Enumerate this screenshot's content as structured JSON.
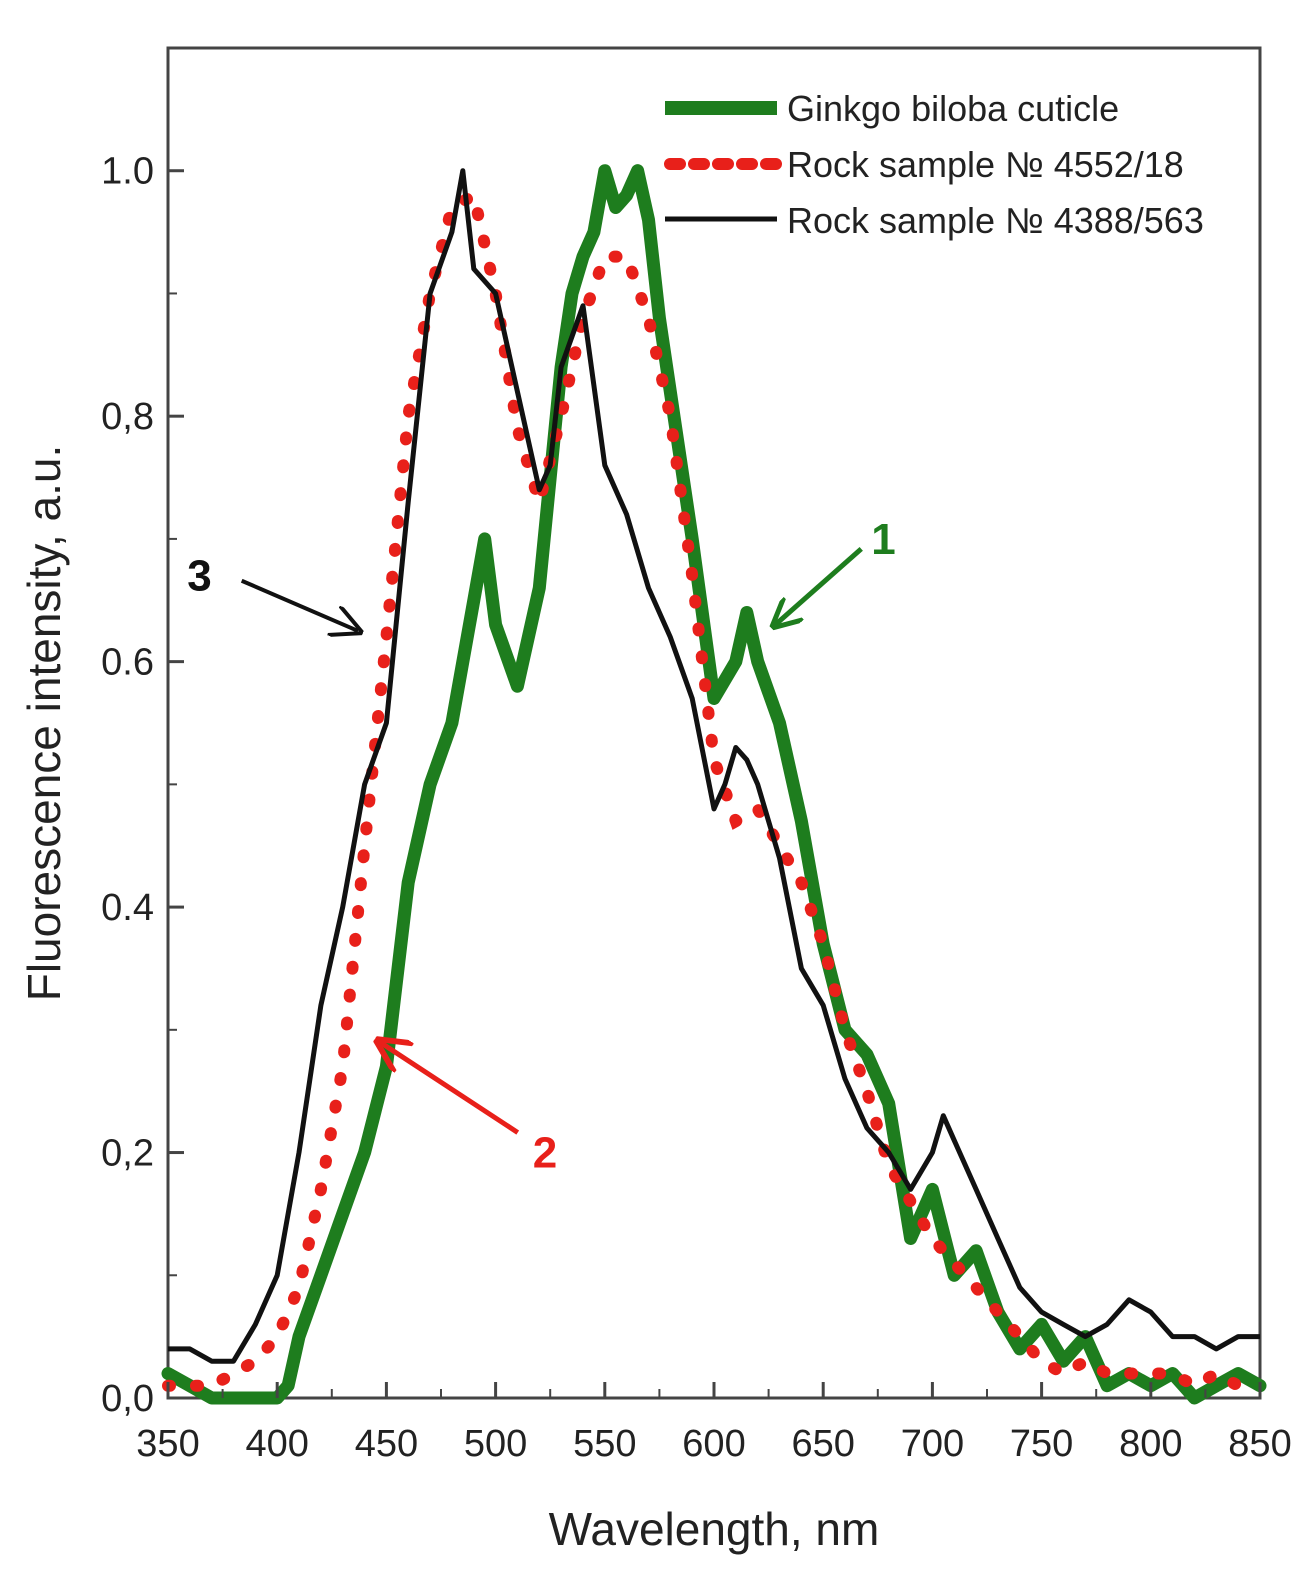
{
  "chart_data": {
    "type": "line",
    "xlabel": "Wavelength, nm",
    "ylabel": "Fluorescence intensity, a.u.",
    "xlim": [
      350,
      850
    ],
    "ylim": [
      0,
      1.1
    ],
    "xticks": [
      "350",
      "400",
      "450",
      "500",
      "550",
      "600",
      "650",
      "700",
      "750",
      "800",
      "850"
    ],
    "yticks": [
      "0,0",
      "0,2",
      "0.4",
      "0.6",
      "0,8",
      "1.0"
    ],
    "ytick_values": [
      0,
      0.2,
      0.4,
      0.6,
      0.8,
      1.0
    ],
    "grid": false,
    "legend_position": "top-right",
    "series": [
      {
        "name": "Ginkgo biloba cuticle",
        "color": "#1e7d1e",
        "style": "solid-thick",
        "x": [
          350,
          360,
          370,
          380,
          390,
          400,
          405,
          410,
          420,
          430,
          440,
          450,
          460,
          470,
          480,
          490,
          495,
          500,
          510,
          520,
          525,
          530,
          535,
          540,
          545,
          550,
          555,
          560,
          565,
          570,
          575,
          580,
          590,
          600,
          610,
          615,
          620,
          630,
          640,
          650,
          660,
          670,
          680,
          690,
          700,
          710,
          720,
          730,
          740,
          750,
          760,
          770,
          780,
          790,
          800,
          810,
          820,
          830,
          840,
          850
        ],
        "y": [
          0.02,
          0.01,
          0.0,
          0.0,
          0.0,
          0.0,
          0.01,
          0.05,
          0.1,
          0.15,
          0.2,
          0.27,
          0.42,
          0.5,
          0.55,
          0.65,
          0.7,
          0.63,
          0.58,
          0.66,
          0.75,
          0.84,
          0.9,
          0.93,
          0.95,
          1.0,
          0.97,
          0.98,
          1.0,
          0.96,
          0.88,
          0.82,
          0.7,
          0.57,
          0.6,
          0.64,
          0.6,
          0.55,
          0.47,
          0.37,
          0.3,
          0.28,
          0.24,
          0.13,
          0.17,
          0.1,
          0.12,
          0.07,
          0.04,
          0.06,
          0.03,
          0.05,
          0.01,
          0.02,
          0.01,
          0.02,
          0.0,
          0.01,
          0.02,
          0.01
        ]
      },
      {
        "name": "Rock sample № 4552/18",
        "color": "#e8201a",
        "style": "dotted-thick",
        "x": [
          350,
          360,
          370,
          380,
          390,
          400,
          410,
          420,
          430,
          440,
          450,
          460,
          470,
          480,
          490,
          500,
          510,
          520,
          530,
          540,
          550,
          560,
          570,
          580,
          590,
          600,
          610,
          620,
          630,
          640,
          650,
          660,
          670,
          680,
          690,
          700,
          710,
          720,
          730,
          740,
          750,
          760,
          770,
          780,
          790,
          800,
          810,
          820,
          830,
          840,
          850
        ],
        "y": [
          0.01,
          0.01,
          0.01,
          0.02,
          0.03,
          0.05,
          0.09,
          0.17,
          0.27,
          0.45,
          0.62,
          0.8,
          0.9,
          0.97,
          0.98,
          0.9,
          0.79,
          0.73,
          0.8,
          0.88,
          0.93,
          0.93,
          0.88,
          0.8,
          0.67,
          0.52,
          0.47,
          0.48,
          0.45,
          0.42,
          0.37,
          0.3,
          0.25,
          0.19,
          0.16,
          0.13,
          0.11,
          0.09,
          0.07,
          0.05,
          0.03,
          0.02,
          0.03,
          0.02,
          0.02,
          0.02,
          0.02,
          0.01,
          0.02,
          0.01,
          0.01
        ]
      },
      {
        "name": "Rock sample № 4388/563",
        "color": "#111111",
        "style": "solid",
        "x": [
          350,
          360,
          370,
          380,
          390,
          400,
          410,
          420,
          430,
          440,
          450,
          460,
          470,
          480,
          485,
          490,
          500,
          510,
          520,
          525,
          530,
          540,
          550,
          560,
          570,
          580,
          590,
          600,
          605,
          610,
          615,
          620,
          630,
          640,
          650,
          660,
          670,
          680,
          690,
          700,
          705,
          710,
          720,
          730,
          740,
          750,
          760,
          770,
          780,
          790,
          800,
          810,
          820,
          830,
          840,
          850
        ],
        "y": [
          0.04,
          0.04,
          0.03,
          0.03,
          0.06,
          0.1,
          0.2,
          0.32,
          0.4,
          0.5,
          0.55,
          0.73,
          0.9,
          0.95,
          1.0,
          0.92,
          0.9,
          0.82,
          0.74,
          0.76,
          0.84,
          0.89,
          0.76,
          0.72,
          0.66,
          0.62,
          0.57,
          0.48,
          0.5,
          0.53,
          0.52,
          0.5,
          0.44,
          0.35,
          0.32,
          0.26,
          0.22,
          0.2,
          0.17,
          0.2,
          0.23,
          0.21,
          0.17,
          0.13,
          0.09,
          0.07,
          0.06,
          0.05,
          0.06,
          0.08,
          0.07,
          0.05,
          0.05,
          0.04,
          0.05,
          0.05
        ]
      }
    ],
    "annotations": [
      {
        "text": "1",
        "color": "#1e7d1e",
        "target_x": 628,
        "target_y": 0.63,
        "label_x": 672,
        "label_y": 0.7
      },
      {
        "text": "2",
        "color": "#e8201a",
        "target_x": 447,
        "target_y": 0.29,
        "label_x": 517,
        "label_y": 0.2
      },
      {
        "text": "3",
        "color": "#111111",
        "target_x": 437,
        "target_y": 0.625,
        "label_x": 370,
        "label_y": 0.67
      }
    ]
  }
}
